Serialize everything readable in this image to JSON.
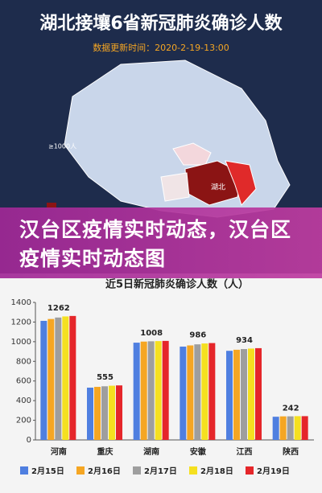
{
  "header": {
    "title": "湖北接壤6省新冠肺炎确诊人数",
    "subtitle": "数据更新时间：2020-2-19-13:00"
  },
  "map": {
    "hubei_label": "湖北",
    "legend_label": "≥1000人"
  },
  "banner": {
    "text": "汉台区疫情实时动态，汉台区疫情实时动态图"
  },
  "chart_data": {
    "type": "bar",
    "title": "近5日新冠肺炎确诊人数（人）",
    "categories": [
      "河南",
      "重庆",
      "湖南",
      "安徽",
      "江西",
      "陕西"
    ],
    "series": [
      {
        "name": "2月15日",
        "color": "#4f7fe0",
        "values": [
          1212,
          532,
          990,
          950,
          907,
          236
        ]
      },
      {
        "name": "2月16日",
        "color": "#f5a623",
        "values": [
          1231,
          540,
          1001,
          962,
          918,
          240
        ]
      },
      {
        "name": "2月17日",
        "color": "#9e9e9e",
        "values": [
          1246,
          546,
          1004,
          973,
          925,
          240
        ]
      },
      {
        "name": "2月18日",
        "color": "#f5e020",
        "values": [
          1257,
          552,
          1006,
          982,
          930,
          242
        ]
      },
      {
        "name": "2月19日",
        "color": "#e5262a",
        "values": [
          1262,
          555,
          1008,
          986,
          934,
          242
        ]
      }
    ],
    "ylim": [
      0,
      1400
    ],
    "yticks": [
      0,
      200,
      400,
      600,
      800,
      1000,
      1200,
      1400
    ],
    "grid": false
  }
}
